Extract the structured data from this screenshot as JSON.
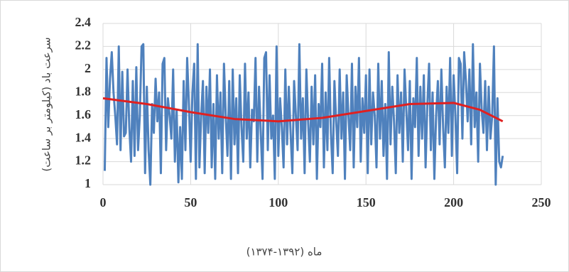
{
  "chart_data": {
    "type": "line",
    "y_label": "سرعت باد (کیلومتر بر ساعت)",
    "x_label": "ماه (۱۳۹۲-۱۳۷۴)",
    "xlim": [
      0,
      250
    ],
    "xticks": [
      0,
      50,
      100,
      150,
      200,
      250
    ],
    "ylim": [
      1,
      2.4
    ],
    "yticks": [
      1,
      1.2,
      1.4,
      1.6,
      1.8,
      2,
      2.2,
      2.4
    ],
    "grid": true,
    "x": [
      1,
      2,
      3,
      4,
      5,
      6,
      7,
      8,
      9,
      10,
      11,
      12,
      13,
      14,
      15,
      16,
      17,
      18,
      19,
      20,
      21,
      22,
      23,
      24,
      25,
      26,
      27,
      28,
      29,
      30,
      31,
      32,
      33,
      34,
      35,
      36,
      37,
      38,
      39,
      40,
      41,
      42,
      43,
      44,
      45,
      46,
      47,
      48,
      49,
      50,
      51,
      52,
      53,
      54,
      55,
      56,
      57,
      58,
      59,
      60,
      61,
      62,
      63,
      64,
      65,
      66,
      67,
      68,
      69,
      70,
      71,
      72,
      73,
      74,
      75,
      76,
      77,
      78,
      79,
      80,
      81,
      82,
      83,
      84,
      85,
      86,
      87,
      88,
      89,
      90,
      91,
      92,
      93,
      94,
      95,
      96,
      97,
      98,
      99,
      100,
      101,
      102,
      103,
      104,
      105,
      106,
      107,
      108,
      109,
      110,
      111,
      112,
      113,
      114,
      115,
      116,
      117,
      118,
      119,
      120,
      121,
      122,
      123,
      124,
      125,
      126,
      127,
      128,
      129,
      130,
      131,
      132,
      133,
      134,
      135,
      136,
      137,
      138,
      139,
      140,
      141,
      142,
      143,
      144,
      145,
      146,
      147,
      148,
      149,
      150,
      151,
      152,
      153,
      154,
      155,
      156,
      157,
      158,
      159,
      160,
      161,
      162,
      163,
      164,
      165,
      166,
      167,
      168,
      169,
      170,
      171,
      172,
      173,
      174,
      175,
      176,
      177,
      178,
      179,
      180,
      181,
      182,
      183,
      184,
      185,
      186,
      187,
      188,
      189,
      190,
      191,
      192,
      193,
      194,
      195,
      196,
      197,
      198,
      199,
      200,
      201,
      202,
      203,
      204,
      205,
      206,
      207,
      208,
      209,
      210,
      211,
      212,
      213,
      214,
      215,
      216,
      217,
      218,
      219,
      220,
      221,
      222,
      223,
      224,
      225,
      226,
      227,
      228
    ],
    "series": [
      {
        "color": "#4f81bd",
        "values": [
          1.12,
          2.1,
          1.5,
          1.92,
          2.15,
          1.8,
          1.6,
          1.35,
          2.2,
          1.3,
          1.98,
          1.42,
          1.45,
          2.0,
          1.5,
          1.2,
          1.9,
          1.25,
          2.02,
          1.3,
          1.6,
          2.2,
          2.22,
          1.1,
          1.85,
          1.3,
          1.0,
          1.7,
          1.45,
          1.92,
          1.55,
          1.8,
          1.1,
          2.05,
          2.1,
          1.3,
          1.75,
          1.6,
          1.4,
          2.0,
          1.2,
          1.65,
          1.02,
          1.5,
          1.05,
          1.9,
          1.3,
          2.1,
          1.7,
          1.2,
          1.8,
          2.05,
          1.05,
          2.22,
          1.15,
          1.6,
          1.9,
          1.1,
          1.85,
          1.45,
          2.0,
          1.15,
          1.7,
          1.05,
          1.95,
          1.4,
          1.8,
          1.1,
          2.05,
          1.6,
          1.25,
          1.9,
          1.05,
          2.0,
          1.35,
          1.75,
          1.1,
          1.95,
          1.5,
          1.2,
          2.05,
          1.4,
          1.8,
          1.15,
          1.65,
          1.55,
          2.1,
          1.2,
          1.85,
          1.45,
          1.05,
          2.1,
          2.15,
          1.3,
          1.95,
          1.4,
          1.6,
          1.05,
          2.2,
          1.25,
          1.75,
          1.5,
          1.15,
          2.0,
          1.35,
          1.85,
          1.45,
          1.1,
          1.9,
          1.6,
          1.3,
          2.22,
          1.4,
          1.75,
          1.1,
          2.0,
          1.55,
          1.2,
          1.85,
          1.35,
          1.95,
          1.05,
          1.7,
          1.5,
          2.05,
          1.15,
          1.8,
          1.3,
          2.1,
          1.45,
          1.1,
          1.9,
          1.55,
          1.25,
          2.0,
          1.4,
          1.8,
          1.05,
          1.95,
          1.6,
          1.3,
          2.05,
          1.15,
          1.85,
          1.5,
          2.1,
          1.2,
          1.75,
          1.45,
          1.95,
          1.1,
          2.0,
          1.35,
          1.8,
          1.6,
          1.15,
          2.05,
          1.4,
          1.9,
          1.25,
          1.7,
          1.05,
          2.15,
          1.35,
          1.85,
          1.55,
          1.1,
          1.95,
          1.45,
          1.8,
          1.2,
          2.0,
          1.65,
          1.3,
          1.9,
          1.05,
          1.75,
          1.5,
          2.1,
          1.25,
          1.85,
          1.4,
          1.95,
          1.15,
          1.7,
          2.05,
          1.3,
          1.8,
          1.05,
          1.6,
          1.9,
          1.35,
          2.0,
          1.5,
          1.15,
          1.85,
          1.45,
          2.1,
          1.25,
          1.95,
          1.6,
          1.1,
          2.1,
          2.05,
          1.4,
          2.15,
          1.9,
          1.55,
          2.0,
          1.35,
          2.22,
          1.5,
          1.8,
          1.2,
          2.05,
          1.65,
          1.45,
          1.9,
          1.3,
          1.85,
          1.4,
          1.6,
          2.2,
          1.0,
          1.75,
          1.2,
          1.15,
          1.25
        ]
      }
    ],
    "trendline": {
      "color": "#e02020",
      "x": [
        0,
        25,
        50,
        75,
        100,
        125,
        150,
        175,
        200,
        215,
        228
      ],
      "values": [
        1.75,
        1.7,
        1.63,
        1.57,
        1.55,
        1.58,
        1.64,
        1.7,
        1.71,
        1.65,
        1.55
      ]
    }
  }
}
